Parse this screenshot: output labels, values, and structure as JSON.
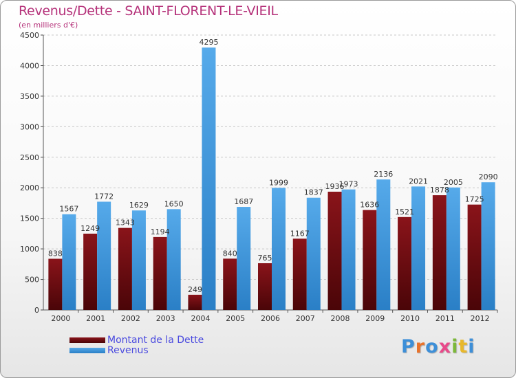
{
  "title": "Revenus/Dette - SAINT-FLORENT-LE-VIEIL",
  "subtitle": "(en milliers d'€)",
  "logo": "Proxiti",
  "colors": {
    "dette": "#6b0a0f",
    "revenus": "#3d97de",
    "title": "#b5327a",
    "legend_text": "#4a4adf"
  },
  "chart_data": {
    "type": "bar",
    "categories": [
      "2000",
      "2001",
      "2002",
      "2003",
      "2004",
      "2005",
      "2006",
      "2007",
      "2008",
      "2009",
      "2010",
      "2011",
      "2012"
    ],
    "series": [
      {
        "name": "Montant de la Dette",
        "values": [
          838,
          1249,
          1343,
          1194,
          249,
          840,
          765,
          1167,
          1936,
          1636,
          1521,
          1878,
          1725
        ],
        "labels": [
          "838",
          "1249",
          "1343",
          "1194",
          "249",
          "840",
          "765",
          "1167",
          "1936",
          "1636",
          "1521",
          "1878",
          "1725"
        ]
      },
      {
        "name": "Revenus",
        "values": [
          1567,
          1772,
          1629,
          1650,
          4295,
          1687,
          1999,
          1837,
          1973,
          2136,
          2021,
          2005,
          2090
        ],
        "labels": [
          "1567",
          "1772",
          "1629",
          "1650",
          "4295",
          "1687",
          "1999",
          "1837",
          "1973",
          "2136",
          "2021",
          "2005",
          "2090"
        ]
      }
    ],
    "yticks": [
      "0",
      "500",
      "1000",
      "1500",
      "2000",
      "2500",
      "3000",
      "3500",
      "4000",
      "4500"
    ],
    "ylim": [
      0,
      4500
    ],
    "grid": true,
    "legend": "bottom-left"
  }
}
